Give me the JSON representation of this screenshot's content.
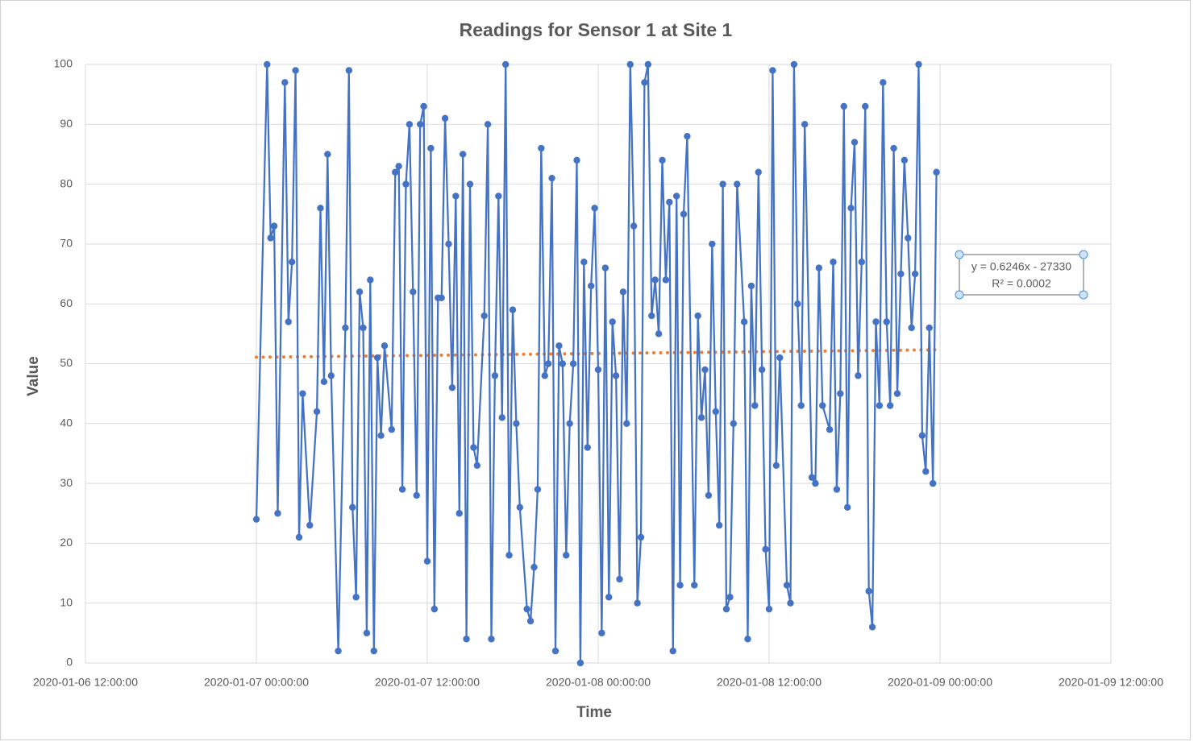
{
  "chart_data": {
    "type": "line",
    "title": "Readings for Sensor 1 at Site 1",
    "x_label": "Time",
    "y_label": "Value",
    "color": "#4472c4",
    "grid": true,
    "xlim": [
      "2020-01-06 12:00:00",
      "2020-01-09 12:00:00"
    ],
    "xticks": [
      "2020-01-06 12:00:00",
      "2020-01-07 00:00:00",
      "2020-01-07 12:00:00",
      "2020-01-08 00:00:00",
      "2020-01-08 12:00:00",
      "2020-01-09 00:00:00",
      "2020-01-09 12:00:00"
    ],
    "ylim": [
      0,
      100
    ],
    "yticks": [
      0,
      10,
      20,
      30,
      40,
      50,
      60,
      70,
      80,
      90,
      100
    ],
    "trendline": {
      "color": "#ed7d31",
      "equation": "y = 0.6246x - 27330",
      "r_squared": "R² = 0.0002"
    },
    "x": [
      "2020-01-07 00:00:00",
      "2020-01-07 00:45:00",
      "2020-01-07 01:00:00",
      "2020-01-07 01:15:00",
      "2020-01-07 01:30:00",
      "2020-01-07 02:00:00",
      "2020-01-07 02:15:00",
      "2020-01-07 02:30:00",
      "2020-01-07 02:45:00",
      "2020-01-07 03:00:00",
      "2020-01-07 03:15:00",
      "2020-01-07 03:45:00",
      "2020-01-07 04:15:00",
      "2020-01-07 04:30:00",
      "2020-01-07 04:45:00",
      "2020-01-07 05:00:00",
      "2020-01-07 05:15:00",
      "2020-01-07 05:45:00",
      "2020-01-07 06:15:00",
      "2020-01-07 06:30:00",
      "2020-01-07 06:45:00",
      "2020-01-07 07:00:00",
      "2020-01-07 07:15:00",
      "2020-01-07 07:30:00",
      "2020-01-07 07:45:00",
      "2020-01-07 08:00:00",
      "2020-01-07 08:15:00",
      "2020-01-07 08:30:00",
      "2020-01-07 08:45:00",
      "2020-01-07 09:00:00",
      "2020-01-07 09:30:00",
      "2020-01-07 09:45:00",
      "2020-01-07 10:00:00",
      "2020-01-07 10:15:00",
      "2020-01-07 10:30:00",
      "2020-01-07 10:45:00",
      "2020-01-07 11:00:00",
      "2020-01-07 11:15:00",
      "2020-01-07 11:30:00",
      "2020-01-07 11:45:00",
      "2020-01-07 12:00:00",
      "2020-01-07 12:15:00",
      "2020-01-07 12:30:00",
      "2020-01-07 12:45:00",
      "2020-01-07 13:00:00",
      "2020-01-07 13:15:00",
      "2020-01-07 13:30:00",
      "2020-01-07 13:45:00",
      "2020-01-07 14:00:00",
      "2020-01-07 14:15:00",
      "2020-01-07 14:30:00",
      "2020-01-07 14:45:00",
      "2020-01-07 15:00:00",
      "2020-01-07 15:15:00",
      "2020-01-07 15:30:00",
      "2020-01-07 16:00:00",
      "2020-01-07 16:15:00",
      "2020-01-07 16:30:00",
      "2020-01-07 16:45:00",
      "2020-01-07 17:00:00",
      "2020-01-07 17:15:00",
      "2020-01-07 17:30:00",
      "2020-01-07 17:45:00",
      "2020-01-07 18:00:00",
      "2020-01-07 18:15:00",
      "2020-01-07 18:30:00",
      "2020-01-07 19:00:00",
      "2020-01-07 19:15:00",
      "2020-01-07 19:30:00",
      "2020-01-07 19:45:00",
      "2020-01-07 20:00:00",
      "2020-01-07 20:15:00",
      "2020-01-07 20:30:00",
      "2020-01-07 20:45:00",
      "2020-01-07 21:00:00",
      "2020-01-07 21:15:00",
      "2020-01-07 21:30:00",
      "2020-01-07 21:45:00",
      "2020-01-07 22:00:00",
      "2020-01-07 22:15:00",
      "2020-01-07 22:30:00",
      "2020-01-07 22:45:00",
      "2020-01-07 23:00:00",
      "2020-01-07 23:15:00",
      "2020-01-07 23:30:00",
      "2020-01-07 23:45:00",
      "2020-01-08 00:00:00",
      "2020-01-08 00:15:00",
      "2020-01-08 00:30:00",
      "2020-01-08 00:45:00",
      "2020-01-08 01:00:00",
      "2020-01-08 01:15:00",
      "2020-01-08 01:30:00",
      "2020-01-08 01:45:00",
      "2020-01-08 02:00:00",
      "2020-01-08 02:15:00",
      "2020-01-08 02:30:00",
      "2020-01-08 02:45:00",
      "2020-01-08 03:00:00",
      "2020-01-08 03:15:00",
      "2020-01-08 03:30:00",
      "2020-01-08 03:45:00",
      "2020-01-08 04:00:00",
      "2020-01-08 04:15:00",
      "2020-01-08 04:30:00",
      "2020-01-08 04:45:00",
      "2020-01-08 05:00:00",
      "2020-01-08 05:15:00",
      "2020-01-08 05:30:00",
      "2020-01-08 05:45:00",
      "2020-01-08 06:00:00",
      "2020-01-08 06:15:00",
      "2020-01-08 06:45:00",
      "2020-01-08 07:00:00",
      "2020-01-08 07:15:00",
      "2020-01-08 07:30:00",
      "2020-01-08 07:45:00",
      "2020-01-08 08:00:00",
      "2020-01-08 08:15:00",
      "2020-01-08 08:30:00",
      "2020-01-08 08:45:00",
      "2020-01-08 09:00:00",
      "2020-01-08 09:15:00",
      "2020-01-08 09:30:00",
      "2020-01-08 09:45:00",
      "2020-01-08 10:15:00",
      "2020-01-08 10:30:00",
      "2020-01-08 10:45:00",
      "2020-01-08 11:00:00",
      "2020-01-08 11:15:00",
      "2020-01-08 11:30:00",
      "2020-01-08 11:45:00",
      "2020-01-08 12:00:00",
      "2020-01-08 12:15:00",
      "2020-01-08 12:30:00",
      "2020-01-08 12:45:00",
      "2020-01-08 13:15:00",
      "2020-01-08 13:30:00",
      "2020-01-08 13:45:00",
      "2020-01-08 14:00:00",
      "2020-01-08 14:15:00",
      "2020-01-08 14:30:00",
      "2020-01-08 15:00:00",
      "2020-01-08 15:15:00",
      "2020-01-08 15:30:00",
      "2020-01-08 15:45:00",
      "2020-01-08 16:15:00",
      "2020-01-08 16:30:00",
      "2020-01-08 16:45:00",
      "2020-01-08 17:00:00",
      "2020-01-08 17:15:00",
      "2020-01-08 17:30:00",
      "2020-01-08 17:45:00",
      "2020-01-08 18:00:00",
      "2020-01-08 18:15:00",
      "2020-01-08 18:30:00",
      "2020-01-08 18:45:00",
      "2020-01-08 19:00:00",
      "2020-01-08 19:15:00",
      "2020-01-08 19:30:00",
      "2020-01-08 19:45:00",
      "2020-01-08 20:00:00",
      "2020-01-08 20:15:00",
      "2020-01-08 20:30:00",
      "2020-01-08 20:45:00",
      "2020-01-08 21:00:00",
      "2020-01-08 21:15:00",
      "2020-01-08 21:30:00",
      "2020-01-08 21:45:00",
      "2020-01-08 22:00:00",
      "2020-01-08 22:15:00",
      "2020-01-08 22:30:00",
      "2020-01-08 22:45:00",
      "2020-01-08 23:00:00",
      "2020-01-08 23:15:00",
      "2020-01-08 23:30:00",
      "2020-01-08 23:45:00"
    ],
    "values": [
      24,
      100,
      71,
      73,
      25,
      97,
      57,
      67,
      99,
      21,
      45,
      23,
      42,
      76,
      47,
      85,
      48,
      2,
      56,
      99,
      26,
      11,
      62,
      56,
      5,
      64,
      2,
      51,
      38,
      53,
      39,
      82,
      83,
      29,
      80,
      90,
      62,
      28,
      90,
      93,
      17,
      86,
      9,
      61,
      61,
      91,
      70,
      46,
      78,
      25,
      85,
      4,
      80,
      36,
      33,
      58,
      90,
      4,
      48,
      78,
      41,
      100,
      18,
      59,
      40,
      26,
      9,
      7,
      16,
      29,
      86,
      48,
      50,
      81,
      2,
      53,
      50,
      18,
      40,
      50,
      84,
      0,
      67,
      36,
      63,
      76,
      49,
      5,
      66,
      11,
      57,
      48,
      14,
      62,
      40,
      100,
      73,
      10,
      21,
      97,
      100,
      58,
      64,
      55,
      84,
      64,
      77,
      2,
      78,
      13,
      75,
      88,
      13,
      58,
      41,
      49,
      28,
      70,
      42,
      23,
      80,
      9,
      11,
      40,
      80,
      57,
      4,
      63,
      43,
      82,
      49,
      19,
      9,
      99,
      33,
      51,
      13,
      10,
      100,
      60,
      43,
      90,
      31,
      30,
      66,
      43,
      39,
      67,
      29,
      45,
      93,
      26,
      76,
      87,
      48,
      67,
      93,
      12,
      6,
      57,
      43,
      97,
      57,
      43,
      86,
      45,
      65,
      84,
      71,
      56,
      65,
      100,
      38,
      32,
      56,
      30,
      82
    ]
  }
}
